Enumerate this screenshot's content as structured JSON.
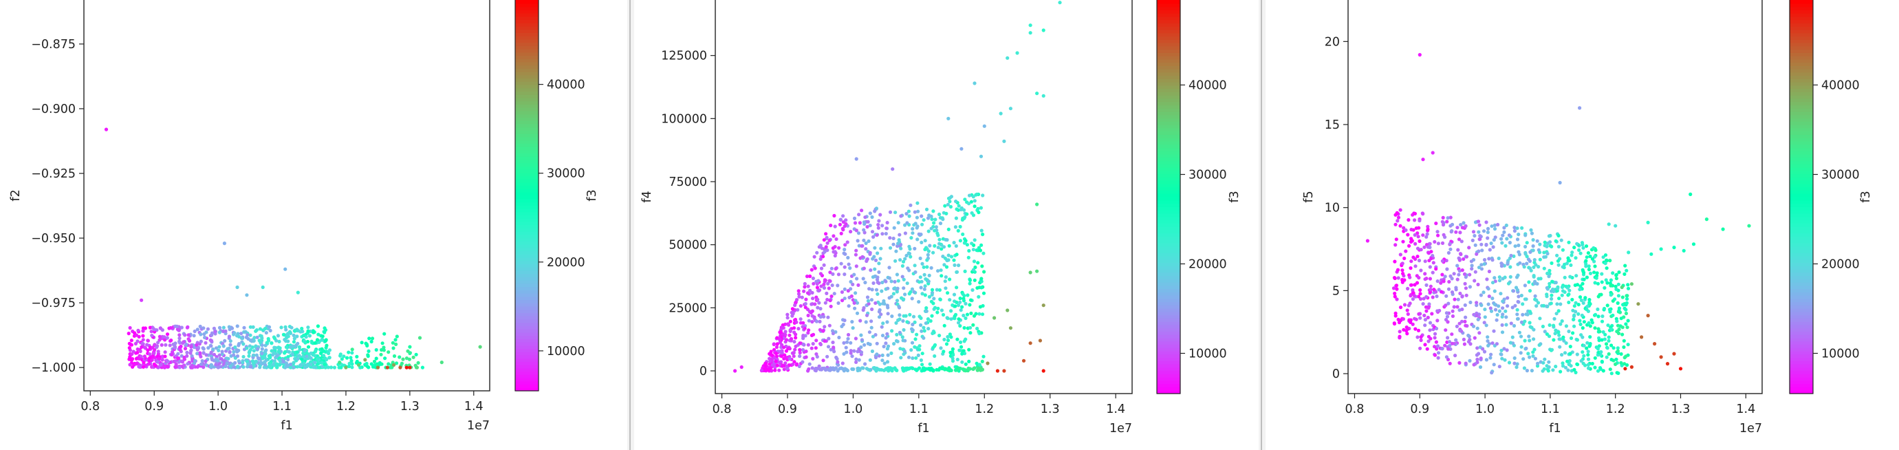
{
  "chart_data": [
    {
      "type": "scatter",
      "xlabel": "f1",
      "ylabel": "f2",
      "colorbar_label": "f3",
      "x_offset_label": "1e7",
      "x_ticks": [
        "0.8",
        "0.9",
        "1.0",
        "1.1",
        "1.2",
        "1.3",
        "1.4"
      ],
      "x_tick_values": [
        0.8,
        0.9,
        1.0,
        1.1,
        1.2,
        1.3,
        1.4
      ],
      "y_ticks": [
        "−1.000",
        "−0.975",
        "−0.950",
        "−0.925",
        "−0.900",
        "−0.875"
      ],
      "y_tick_values": [
        -1.0,
        -0.975,
        -0.95,
        -0.925,
        -0.9,
        -0.875
      ],
      "xlim": [
        0.79,
        1.425
      ],
      "ylim": [
        -1.009,
        -0.858
      ],
      "colorbar_ticks": [
        "10000",
        "20000",
        "30000",
        "40000"
      ],
      "colorbar_tick_values": [
        10000,
        20000,
        30000,
        40000
      ],
      "colorbar_range": [
        5500,
        49500
      ],
      "colormap": "rainbow",
      "points": [
        [
          0.825,
          -0.908,
          7000
        ],
        [
          1.01,
          -0.952,
          16000
        ],
        [
          1.105,
          -0.962,
          17000
        ],
        [
          1.03,
          -0.969,
          19000
        ],
        [
          1.07,
          -0.969,
          21000
        ],
        [
          1.125,
          -0.971,
          22000
        ],
        [
          1.045,
          -0.972,
          17500
        ],
        [
          0.88,
          -0.974,
          9000
        ],
        [
          1.41,
          -0.992,
          35000
        ],
        [
          1.35,
          -0.998,
          34000
        ],
        [
          1.32,
          -1.0,
          26000
        ],
        [
          1.3,
          -1.0,
          47500
        ],
        [
          1.285,
          -1.0,
          44000
        ],
        [
          1.265,
          -1.0,
          45500
        ],
        [
          1.25,
          -1.0,
          42000
        ],
        [
          1.295,
          -1.0,
          48500
        ],
        [
          1.275,
          -0.999,
          40000
        ],
        [
          1.3,
          -0.992,
          30000
        ],
        [
          1.31,
          -0.995,
          28000
        ],
        [
          1.255,
          -0.995,
          31000
        ],
        [
          1.24,
          -0.99,
          27000
        ],
        [
          1.19,
          -0.998,
          33000
        ],
        [
          1.22,
          -0.999,
          36000
        ],
        [
          1.2,
          -1.0,
          38000
        ],
        [
          1.23,
          -0.997,
          39000
        ],
        [
          1.26,
          -0.987,
          28500
        ],
        [
          1.28,
          -0.988,
          29500
        ],
        [
          1.21,
          -0.993,
          32000
        ]
      ],
      "cloud": {
        "x_range": [
          0.86,
          1.17
        ],
        "y_range": [
          -1.0,
          -0.984
        ],
        "count": 900,
        "tail_x_range": [
          1.1,
          1.32
        ],
        "tail_count": 140
      }
    },
    {
      "type": "scatter",
      "xlabel": "f1",
      "ylabel": "f4",
      "colorbar_label": "f3",
      "x_offset_label": "1e7",
      "x_ticks": [
        "0.8",
        "0.9",
        "1.0",
        "1.1",
        "1.2",
        "1.3",
        "1.4"
      ],
      "x_tick_values": [
        0.8,
        0.9,
        1.0,
        1.1,
        1.2,
        1.3,
        1.4
      ],
      "y_ticks": [
        "0",
        "25000",
        "50000",
        "75000",
        "100000",
        "125000"
      ],
      "y_tick_values": [
        0,
        25000,
        50000,
        75000,
        100000,
        125000
      ],
      "xlim": [
        0.79,
        1.425
      ],
      "ylim": [
        -9000,
        147000
      ],
      "colorbar_ticks": [
        "10000",
        "20000",
        "30000",
        "40000"
      ],
      "colorbar_tick_values": [
        10000,
        20000,
        30000,
        40000
      ],
      "colorbar_range": [
        5500,
        49500
      ],
      "colormap": "rainbow",
      "points": [
        [
          1.315,
          146000,
          22000
        ],
        [
          1.27,
          137000,
          23000
        ],
        [
          1.29,
          135000,
          24000
        ],
        [
          1.27,
          134000,
          22500
        ],
        [
          1.235,
          124000,
          21000
        ],
        [
          1.25,
          126000,
          22000
        ],
        [
          1.185,
          114000,
          19000
        ],
        [
          1.28,
          110000,
          23000
        ],
        [
          1.29,
          109000,
          22000
        ],
        [
          1.24,
          104000,
          20000
        ],
        [
          1.225,
          102000,
          20500
        ],
        [
          1.145,
          100000,
          18000
        ],
        [
          1.2,
          97000,
          17000
        ],
        [
          1.23,
          91000,
          19500
        ],
        [
          1.165,
          88000,
          16000
        ],
        [
          1.195,
          85000,
          18500
        ],
        [
          1.005,
          84000,
          15000
        ],
        [
          1.06,
          80000,
          13000
        ],
        [
          1.28,
          66000,
          33000
        ],
        [
          1.28,
          39500,
          35000
        ],
        [
          1.27,
          39000,
          36000
        ],
        [
          1.29,
          26000,
          40000
        ],
        [
          1.22,
          0,
          47500
        ],
        [
          1.23,
          0,
          46000
        ],
        [
          1.29,
          0,
          48500
        ],
        [
          1.26,
          4000,
          45000
        ],
        [
          1.27,
          11000,
          44000
        ],
        [
          1.285,
          12000,
          43000
        ],
        [
          1.235,
          24000,
          38000
        ],
        [
          1.24,
          17000,
          39000
        ],
        [
          1.215,
          21000,
          37000
        ],
        [
          1.205,
          3000,
          41000
        ],
        [
          0.82,
          0,
          7000
        ],
        [
          0.83,
          1500,
          7500
        ]
      ],
      "cloud": {
        "x_min": 0.86,
        "x_max": 1.2,
        "y_min": 0,
        "y_max": 72000,
        "count": 1100
      }
    },
    {
      "type": "scatter",
      "xlabel": "f1",
      "ylabel": "f5",
      "colorbar_label": "f3",
      "x_offset_label": "1e7",
      "x_ticks": [
        "0.8",
        "0.9",
        "1.0",
        "1.1",
        "1.2",
        "1.3",
        "1.4"
      ],
      "x_tick_values": [
        0.8,
        0.9,
        1.0,
        1.1,
        1.2,
        1.3,
        1.4
      ],
      "y_ticks": [
        "0",
        "5",
        "10",
        "15",
        "20"
      ],
      "y_tick_values": [
        0,
        5,
        10,
        15,
        20
      ],
      "xlim": [
        0.79,
        1.425
      ],
      "ylim": [
        -1.2,
        22.5
      ],
      "colorbar_ticks": [
        "10000",
        "20000",
        "30000",
        "40000"
      ],
      "colorbar_tick_values": [
        10000,
        20000,
        30000,
        40000
      ],
      "colorbar_range": [
        5500,
        49500
      ],
      "colormap": "rainbow",
      "points": [
        [
          0.9,
          19.2,
          7000
        ],
        [
          1.145,
          16.0,
          15000
        ],
        [
          0.92,
          13.3,
          8000
        ],
        [
          0.905,
          12.9,
          7500
        ],
        [
          1.115,
          11.5,
          16000
        ],
        [
          1.315,
          10.8,
          28000
        ],
        [
          1.34,
          9.3,
          30000
        ],
        [
          1.405,
          8.9,
          31000
        ],
        [
          1.365,
          8.7,
          29000
        ],
        [
          1.32,
          7.8,
          27000
        ],
        [
          1.29,
          7.6,
          26500
        ],
        [
          1.305,
          7.4,
          26000
        ],
        [
          1.27,
          7.5,
          25000
        ],
        [
          1.25,
          9.1,
          24000
        ],
        [
          1.255,
          7.2,
          25500
        ],
        [
          0.82,
          8.0,
          7000
        ],
        [
          1.19,
          9.0,
          22000
        ],
        [
          1.2,
          8.9,
          21000
        ],
        [
          1.22,
          7.3,
          23000
        ],
        [
          1.3,
          0.3,
          48500
        ],
        [
          1.28,
          0.6,
          47000
        ],
        [
          1.29,
          1.2,
          46000
        ],
        [
          1.26,
          1.8,
          45000
        ],
        [
          1.25,
          3.5,
          44000
        ],
        [
          1.24,
          2.2,
          43500
        ],
        [
          1.215,
          0.3,
          47500
        ],
        [
          1.225,
          0.4,
          46500
        ],
        [
          1.27,
          1.0,
          45500
        ],
        [
          1.235,
          4.2,
          40000
        ],
        [
          1.21,
          5.2,
          35000
        ],
        [
          1.225,
          5.4,
          36000
        ]
      ],
      "cloud": {
        "x_min": 0.86,
        "x_max": 1.22,
        "y_min": 0,
        "y_max": 10.0,
        "count": 1100
      }
    }
  ]
}
